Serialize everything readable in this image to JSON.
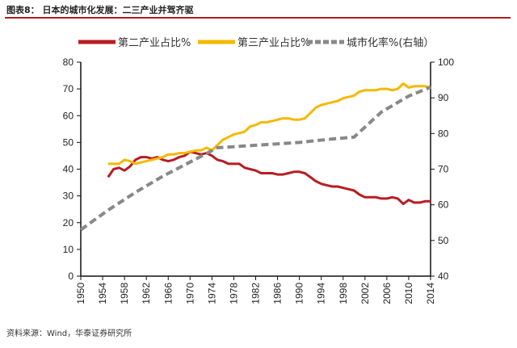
{
  "title": "图表8： 日本的城市化发展：二三产业并驾齐驱",
  "source": "资料来源：Wind，华泰证券研究所",
  "colors": {
    "secondary": "#b81c22",
    "tertiary": "#f5b800",
    "urban": "#888888",
    "rule": "#b01c1c"
  },
  "chart_data": {
    "type": "line",
    "legend_position": "top",
    "grid": false,
    "x": [
      1955,
      1956,
      1957,
      1958,
      1959,
      1960,
      1961,
      1962,
      1963,
      1964,
      1965,
      1966,
      1967,
      1968,
      1969,
      1970,
      1971,
      1972,
      1973,
      1974,
      1975,
      1976,
      1977,
      1978,
      1979,
      1980,
      1981,
      1982,
      1983,
      1984,
      1985,
      1986,
      1987,
      1988,
      1989,
      1990,
      1991,
      1992,
      1993,
      1994,
      1995,
      1996,
      1997,
      1998,
      1999,
      2000,
      2001,
      2002,
      2003,
      2004,
      2005,
      2006,
      2007,
      2008,
      2009,
      2010,
      2011,
      2012,
      2013,
      2014
    ],
    "xlim": [
      1950,
      2014
    ],
    "xticks": [
      "1950",
      "1954",
      "1958",
      "1962",
      "1966",
      "1970",
      "1974",
      "1978",
      "1982",
      "1986",
      "1990",
      "1994",
      "1998",
      "2002",
      "2006",
      "2010",
      "2014"
    ],
    "ylim_left": [
      0,
      80
    ],
    "yticks_left": [
      "0",
      "10",
      "20",
      "30",
      "40",
      "50",
      "60",
      "70",
      "80"
    ],
    "ylim_right": [
      40,
      100
    ],
    "yticks_right": [
      "40",
      "50",
      "60",
      "70",
      "80",
      "90",
      "100"
    ],
    "series": [
      {
        "name": "第二产业占比%",
        "axis": "left",
        "style": "solid",
        "values": [
          37,
          40,
          40.5,
          39.5,
          41,
          43.5,
          44.5,
          44.5,
          44,
          44.5,
          43.5,
          43,
          43.5,
          44.5,
          45,
          46.5,
          46,
          45.5,
          46,
          45,
          43.5,
          43,
          42,
          42,
          42,
          40.5,
          40,
          39.5,
          38.5,
          38.5,
          38.5,
          38,
          38,
          38.5,
          39,
          39,
          38.5,
          37,
          35.5,
          34.5,
          34,
          33.5,
          33.5,
          33,
          32.5,
          32,
          30.5,
          29.5,
          29.5,
          29.5,
          29,
          29,
          29.5,
          29,
          27,
          28.5,
          27.5,
          27.5,
          28,
          28
        ]
      },
      {
        "name": "第三产业占比%",
        "axis": "left",
        "style": "solid",
        "values": [
          42,
          42,
          42,
          43.5,
          43,
          42,
          42.5,
          43,
          43.5,
          44,
          44.5,
          45.5,
          45.5,
          46,
          46,
          46.5,
          47,
          47,
          48,
          47,
          49,
          51,
          52,
          53,
          53.5,
          54,
          56,
          56.5,
          57.5,
          57.5,
          58,
          58.5,
          59,
          59,
          58.5,
          58.5,
          59,
          61,
          63,
          64,
          64.5,
          65,
          65.5,
          66.5,
          67,
          67.5,
          69,
          69.5,
          69.5,
          69.5,
          70,
          70,
          69.5,
          70,
          72,
          70.5,
          71,
          71,
          71,
          70.5
        ]
      },
      {
        "name": "城市化率%(右轴）",
        "axis": "right",
        "style": "dashed",
        "x": [
          1950,
          1955,
          1960,
          1965,
          1970,
          1975,
          1980,
          1985,
          1990,
          1995,
          2000,
          2005,
          2010,
          2014
        ],
        "values": [
          53,
          58.5,
          63.5,
          68,
          72,
          76,
          76.5,
          77,
          77.5,
          78.3,
          79,
          86,
          90.5,
          93
        ]
      }
    ]
  }
}
